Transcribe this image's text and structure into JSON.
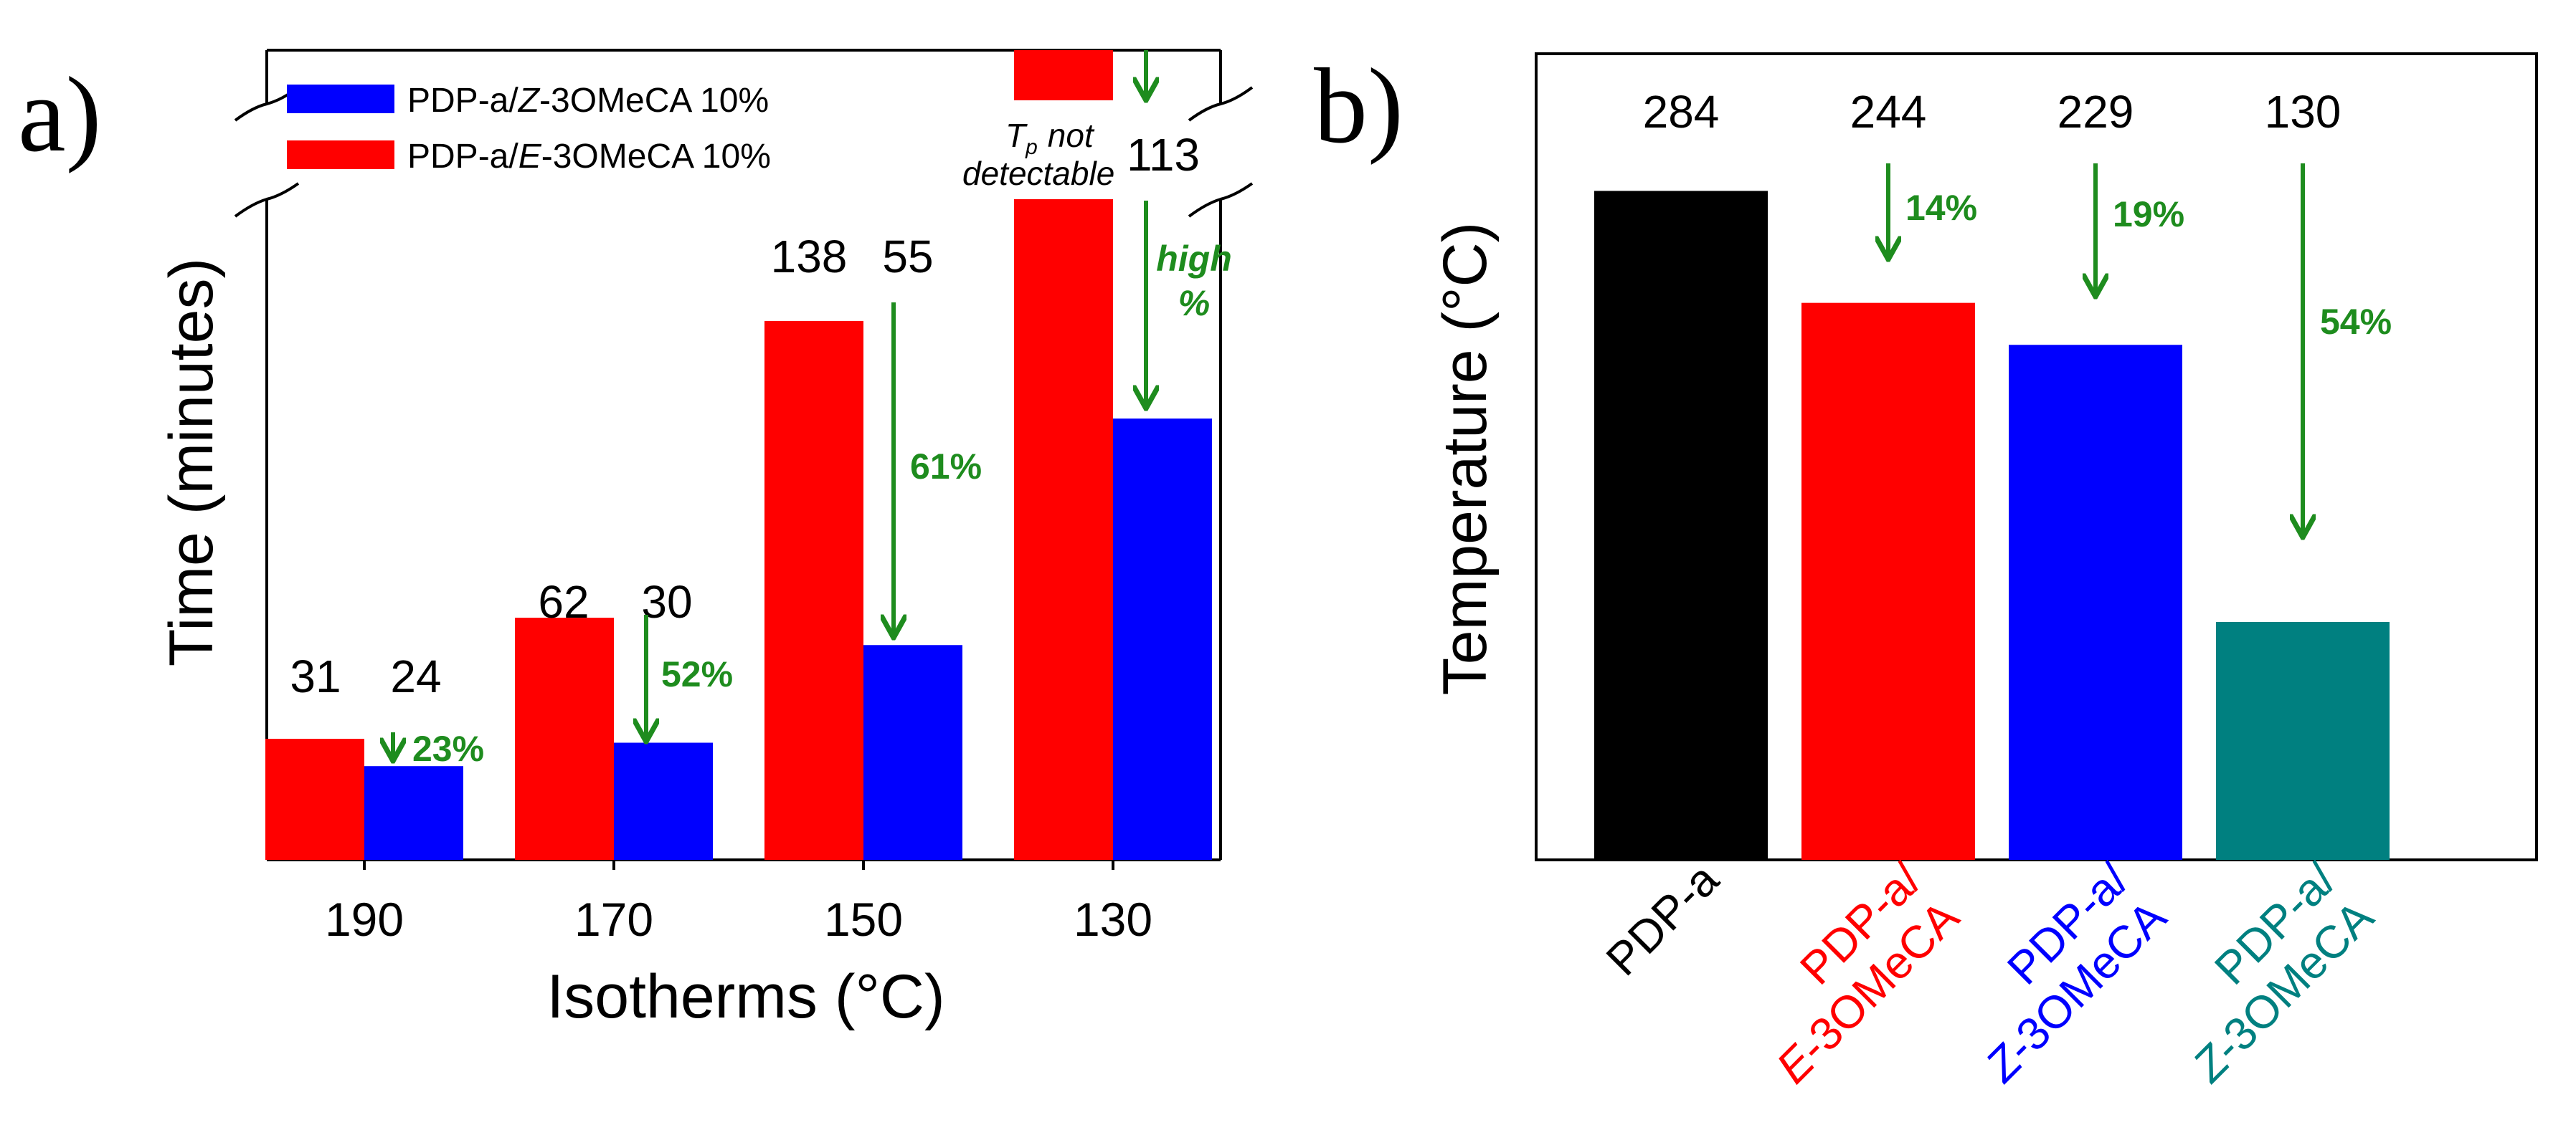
{
  "panel_a": {
    "panel_label": "a)",
    "ylabel": "Time (minutes)",
    "xlabel": "Isotherms (°C)",
    "colors": {
      "E": "#ff0000",
      "Z": "#0000ff",
      "arrow": "#1e8c1e",
      "axis": "#000000"
    },
    "legend": [
      {
        "name": "PDP-a/",
        "italic": "Z",
        "suffix": "-3OMeCA 10%",
        "color": "#0000ff"
      },
      {
        "name": "PDP-a/",
        "italic": "E",
        "suffix": "-3OMeCA 10%",
        "color": "#ff0000"
      }
    ],
    "chart_data": {
      "type": "bar",
      "categories": [
        "190",
        "170",
        "150",
        "130"
      ],
      "series": [
        {
          "name": "PDP-a/E-3OMeCA 10%",
          "values": [
            31,
            62,
            138,
            null
          ]
        },
        {
          "name": "PDP-a/Z-3OMeCA 10%",
          "values": [
            24,
            30,
            55,
            113
          ]
        }
      ],
      "value_labels": {
        "E": [
          "31",
          "62",
          "138",
          ""
        ],
        "Z": [
          "24",
          "30",
          "55",
          "113"
        ]
      },
      "reductions": [
        "23%",
        "52%",
        "61%",
        ""
      ],
      "high_label_1": "high",
      "high_label_2": "%",
      "not_detectable_tp": "T",
      "not_detectable_sub": "p",
      "not_detectable_1": "not",
      "not_detectable_2": "detectable",
      "ylim": [
        0,
        200
      ],
      "axis_break": true
    }
  },
  "panel_b": {
    "panel_label": "b)",
    "ylabel": "Temperature (°C)",
    "chart_data": {
      "type": "bar",
      "categories": [
        "PDP-a",
        "PDP-a/ E-3OMeCA",
        "PDP-a/ Z-3OMeCA",
        "PDP-a/ Z-3OMeCA"
      ],
      "values": [
        284,
        244,
        229,
        130
      ],
      "value_labels": [
        "284",
        "244",
        "229",
        "130"
      ],
      "colors": [
        "#000000",
        "#ff0000",
        "#0000ff",
        "#008080"
      ],
      "reductions": [
        "",
        "14%",
        "19%",
        "54%"
      ],
      "ylim": [
        45,
        333
      ]
    },
    "tick_labels": [
      {
        "line1": "PDP-a",
        "line2": "",
        "italic2": "",
        "rest2": "",
        "color": "#000000"
      },
      {
        "line1": "PDP-a/",
        "italic2": "E",
        "rest2": "-3OMeCA",
        "color": "#ff0000"
      },
      {
        "line1": "PDP-a/",
        "italic2": "Z",
        "rest2": "-3OMeCA",
        "color": "#0000ff"
      },
      {
        "line1": "PDP-a/",
        "italic2": "Z",
        "rest2": "-3OMeCA",
        "color": "#008080"
      }
    ]
  }
}
